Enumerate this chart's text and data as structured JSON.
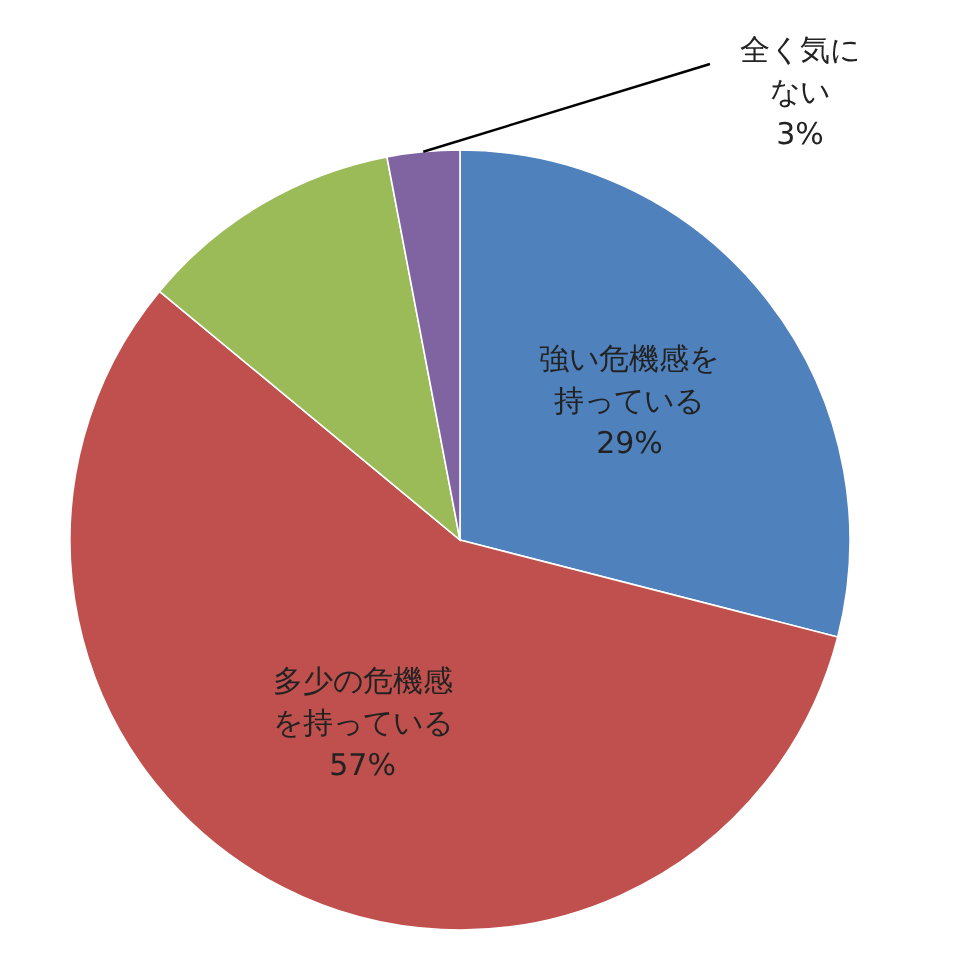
{
  "chart_data": {
    "type": "pie",
    "categories": [
      "強い危機感を持っている",
      "多少の危機感を持っている",
      null,
      "全く気にない"
    ],
    "values": [
      29,
      57,
      11,
      3
    ],
    "colors": [
      "#4f81bd",
      "#c0504d",
      "#9bbb59",
      "#8064a2"
    ],
    "value_labels": [
      "29%",
      "57%",
      null,
      "3%"
    ]
  }
}
